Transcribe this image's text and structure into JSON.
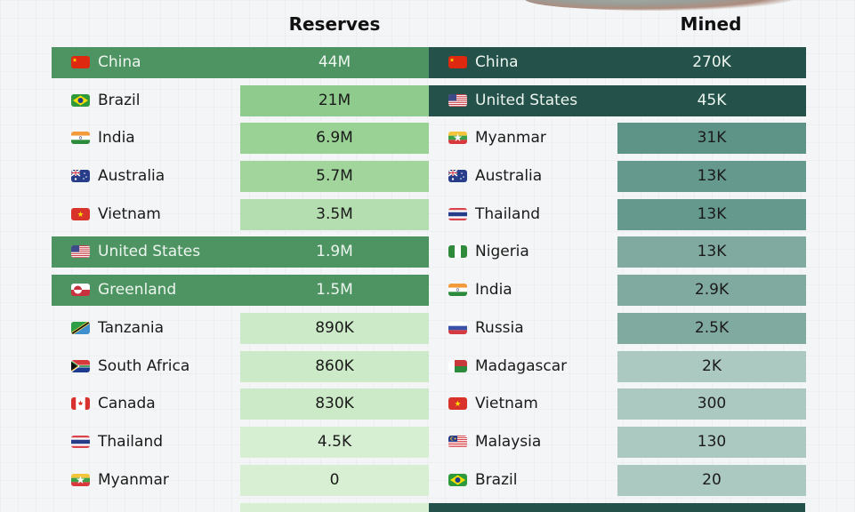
{
  "chart_data": [
    {
      "type": "table",
      "title": "Reserves",
      "categories": [
        "China",
        "Brazil",
        "India",
        "Australia",
        "Vietnam",
        "United States",
        "Greenland",
        "Tanzania",
        "South Africa",
        "Canada",
        "Thailand",
        "Myanmar"
      ],
      "values_label": [
        "44M",
        "21M",
        "6.9M",
        "5.7M",
        "3.5M",
        "1.9M",
        "1.5M",
        "890K",
        "860K",
        "830K",
        "4.5K",
        "0"
      ],
      "values": [
        44000000,
        21000000,
        6900000,
        5700000,
        3500000,
        1900000,
        1500000,
        890000,
        860000,
        830000,
        4500,
        0
      ],
      "highlighted": [
        "China",
        "United States",
        "Greenland"
      ]
    },
    {
      "type": "table",
      "title": "Mined",
      "categories": [
        "China",
        "United States",
        "Myanmar",
        "Australia",
        "Thailand",
        "Nigeria",
        "India",
        "Russia",
        "Madagascar",
        "Vietnam",
        "Malaysia",
        "Brazil"
      ],
      "values_label": [
        "270K",
        "45K",
        "31K",
        "13K",
        "13K",
        "13K",
        "2.9K",
        "2.5K",
        "2K",
        "300",
        "130",
        "20"
      ],
      "values": [
        270000,
        45000,
        31000,
        13000,
        13000,
        13000,
        2900,
        2500,
        2000,
        300,
        130,
        20
      ],
      "highlighted": [
        "China",
        "United States"
      ]
    }
  ],
  "headers": {
    "reserves": "Reserves",
    "mined": "Mined"
  },
  "colors": {
    "reserves_highlight": "#4e9462",
    "mined_highlight": "#24514a"
  },
  "reserves": [
    {
      "country": "China",
      "value": "44M",
      "flag": "china-flag-icon",
      "hl": true,
      "color": "#4e9462"
    },
    {
      "country": "Brazil",
      "value": "21M",
      "flag": "brazil-flag-icon",
      "hl": false,
      "color": "#8fcb8c"
    },
    {
      "country": "India",
      "value": "6.9M",
      "flag": "india-flag-icon",
      "hl": false,
      "color": "#9ad296"
    },
    {
      "country": "Australia",
      "value": "5.7M",
      "flag": "australia-flag-icon",
      "hl": false,
      "color": "#a1d59c"
    },
    {
      "country": "Vietnam",
      "value": "3.5M",
      "flag": "vietnam-flag-icon",
      "hl": false,
      "color": "#b5deb0"
    },
    {
      "country": "United States",
      "value": "1.9M",
      "flag": "us-flag-icon",
      "hl": true,
      "color": "#4e9462"
    },
    {
      "country": "Greenland",
      "value": "1.5M",
      "flag": "greenland-flag-icon",
      "hl": true,
      "color": "#4e9462"
    },
    {
      "country": "Tanzania",
      "value": "890K",
      "flag": "tanzania-flag-icon",
      "hl": false,
      "color": "#cdeac8"
    },
    {
      "country": "South Africa",
      "value": "860K",
      "flag": "south-africa-flag-icon",
      "hl": false,
      "color": "#cdeac8"
    },
    {
      "country": "Canada",
      "value": "830K",
      "flag": "canada-flag-icon",
      "hl": false,
      "color": "#cdeac8"
    },
    {
      "country": "Thailand",
      "value": "4.5K",
      "flag": "thailand-flag-icon",
      "hl": false,
      "color": "#d6eed2"
    },
    {
      "country": "Myanmar",
      "value": "0",
      "flag": "myanmar-flag-icon",
      "hl": false,
      "color": "#d8efd4"
    }
  ],
  "mined": [
    {
      "country": "China",
      "value": "270K",
      "flag": "china-flag-icon",
      "hl": true,
      "color": "#24514a"
    },
    {
      "country": "United States",
      "value": "45K",
      "flag": "us-flag-icon",
      "hl": true,
      "color": "#24514a"
    },
    {
      "country": "Myanmar",
      "value": "31K",
      "flag": "myanmar-flag-icon",
      "hl": false,
      "color": "#5e9488"
    },
    {
      "country": "Australia",
      "value": "13K",
      "flag": "australia-flag-icon",
      "hl": false,
      "color": "#66998d"
    },
    {
      "country": "Thailand",
      "value": "13K",
      "flag": "thailand-flag-icon",
      "hl": false,
      "color": "#66998d"
    },
    {
      "country": "Nigeria",
      "value": "13K",
      "flag": "nigeria-flag-icon",
      "hl": false,
      "color": "#80aaa0"
    },
    {
      "country": "India",
      "value": "2.9K",
      "flag": "india-flag-icon",
      "hl": false,
      "color": "#80aaa0"
    },
    {
      "country": "Russia",
      "value": "2.5K",
      "flag": "russia-flag-icon",
      "hl": false,
      "color": "#80aaa0"
    },
    {
      "country": "Madagascar",
      "value": "2K",
      "flag": "madagascar-flag-icon",
      "hl": false,
      "color": "#abc8c1"
    },
    {
      "country": "Vietnam",
      "value": "300",
      "flag": "vietnam-flag-icon",
      "hl": false,
      "color": "#abc8c1"
    },
    {
      "country": "Malaysia",
      "value": "130",
      "flag": "malaysia-flag-icon",
      "hl": false,
      "color": "#abc8c1"
    },
    {
      "country": "Brazil",
      "value": "20",
      "flag": "brazil-flag-icon",
      "hl": false,
      "color": "#abc8c1"
    }
  ]
}
